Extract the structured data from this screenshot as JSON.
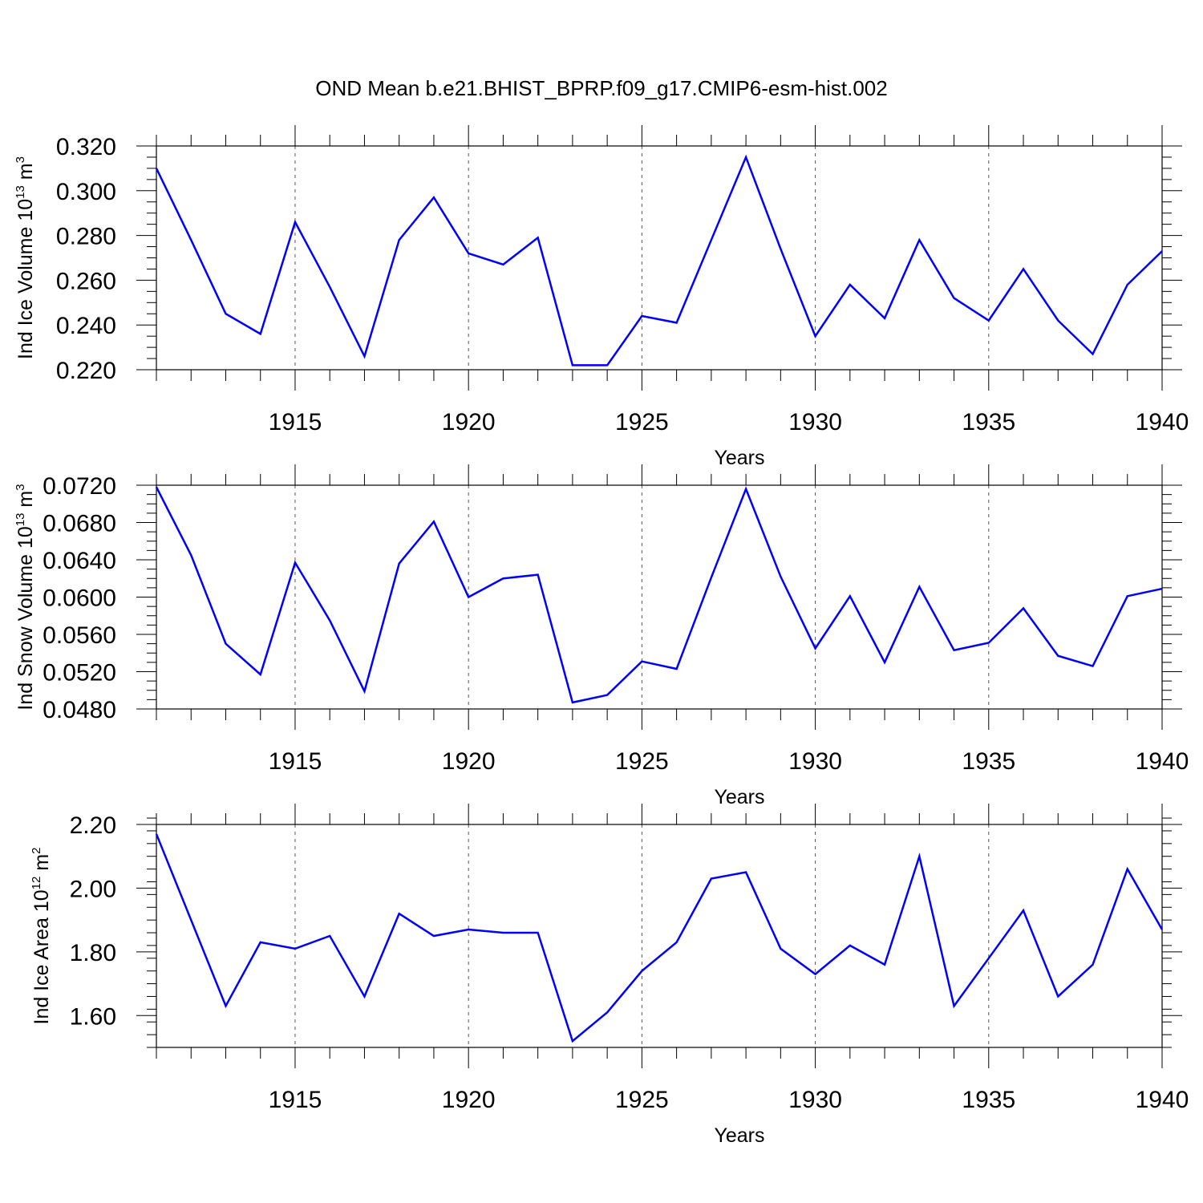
{
  "title": "OND Mean b.e21.BHIST_BPRP.f09_g17.CMIP6-esm-hist.002",
  "chart_data": [
    {
      "type": "line",
      "name": "ice-volume",
      "ylabel_main": "Ind Ice Volume 10",
      "ylabel_exp": "13",
      "ylabel_unit": " m",
      "ylabel_unit_exp": "3",
      "xlabel": "Years",
      "xlim": [
        1911,
        1940
      ],
      "ylim": [
        0.22,
        0.32
      ],
      "yticks": [
        0.22,
        0.24,
        0.26,
        0.28,
        0.3,
        0.32
      ],
      "ytick_labels": [
        "0.220",
        "0.240",
        "0.260",
        "0.280",
        "0.300",
        "0.320"
      ],
      "yminor_step": 0.005,
      "xticks": [
        1915,
        1920,
        1925,
        1930,
        1935,
        1940
      ],
      "xtick_labels": [
        "1915",
        "1920",
        "1925",
        "1930",
        "1935",
        "1940"
      ],
      "grid": "dashed vertical at major x ticks",
      "color": "#0000ff",
      "x": [
        1911,
        1912,
        1913,
        1914,
        1915,
        1916,
        1917,
        1918,
        1919,
        1920,
        1921,
        1922,
        1923,
        1924,
        1925,
        1926,
        1927,
        1928,
        1929,
        1930,
        1931,
        1932,
        1933,
        1934,
        1935,
        1936,
        1937,
        1938,
        1939,
        1940
      ],
      "values": [
        0.31,
        0.278,
        0.245,
        0.236,
        0.286,
        0.257,
        0.226,
        0.278,
        0.297,
        0.272,
        0.267,
        0.279,
        0.222,
        0.222,
        0.244,
        0.241,
        0.278,
        0.315,
        0.274,
        0.235,
        0.258,
        0.243,
        0.278,
        0.252,
        0.242,
        0.265,
        0.242,
        0.227,
        0.258,
        0.273
      ]
    },
    {
      "type": "line",
      "name": "snow-volume",
      "ylabel_main": "Ind Snow Volume 10",
      "ylabel_exp": "13",
      "ylabel_unit": " m",
      "ylabel_unit_exp": "3",
      "xlabel": "Years",
      "xlim": [
        1911,
        1940
      ],
      "ylim": [
        0.048,
        0.072
      ],
      "yticks": [
        0.048,
        0.052,
        0.056,
        0.06,
        0.064,
        0.068,
        0.072
      ],
      "ytick_labels": [
        "0.0480",
        "0.0520",
        "0.0560",
        "0.0600",
        "0.0640",
        "0.0680",
        "0.0720"
      ],
      "yminor_step": 0.001,
      "xticks": [
        1915,
        1920,
        1925,
        1930,
        1935,
        1940
      ],
      "xtick_labels": [
        "1915",
        "1920",
        "1925",
        "1930",
        "1935",
        "1940"
      ],
      "grid": "dashed vertical at major x ticks",
      "color": "#0000ff",
      "x": [
        1911,
        1912,
        1913,
        1914,
        1915,
        1916,
        1917,
        1918,
        1919,
        1920,
        1921,
        1922,
        1923,
        1924,
        1925,
        1926,
        1927,
        1928,
        1929,
        1930,
        1931,
        1932,
        1933,
        1934,
        1935,
        1936,
        1937,
        1938,
        1939,
        1940
      ],
      "values": [
        0.0718,
        0.0645,
        0.055,
        0.0517,
        0.0637,
        0.0575,
        0.0499,
        0.0636,
        0.0681,
        0.06,
        0.062,
        0.0624,
        0.0487,
        0.0495,
        0.0531,
        0.0523,
        0.0621,
        0.0716,
        0.0622,
        0.0545,
        0.0601,
        0.053,
        0.0611,
        0.0543,
        0.0551,
        0.0588,
        0.0537,
        0.0526,
        0.0601,
        0.0609
      ]
    },
    {
      "type": "line",
      "name": "ice-area",
      "ylabel_main": "Ind Ice Area 10",
      "ylabel_exp": "12",
      "ylabel_unit": " m",
      "ylabel_unit_exp": "2",
      "xlabel": "Years",
      "xlim": [
        1911,
        1940
      ],
      "ylim": [
        1.5,
        2.2
      ],
      "yticks": [
        1.6,
        1.8,
        2.0,
        2.2
      ],
      "ytick_labels": [
        "1.60",
        "1.80",
        "2.00",
        "2.20"
      ],
      "yminor_step": 0.04,
      "xticks": [
        1915,
        1920,
        1925,
        1930,
        1935,
        1940
      ],
      "xtick_labels": [
        "1915",
        "1920",
        "1925",
        "1930",
        "1935",
        "1940"
      ],
      "grid": "dashed vertical at major x ticks",
      "color": "#0000ff",
      "x": [
        1911,
        1912,
        1913,
        1914,
        1915,
        1916,
        1917,
        1918,
        1919,
        1920,
        1921,
        1922,
        1923,
        1924,
        1925,
        1926,
        1927,
        1928,
        1929,
        1930,
        1931,
        1932,
        1933,
        1934,
        1935,
        1936,
        1937,
        1938,
        1939,
        1940
      ],
      "values": [
        2.17,
        1.9,
        1.63,
        1.83,
        1.81,
        1.85,
        1.66,
        1.92,
        1.85,
        1.87,
        1.86,
        1.86,
        1.52,
        1.61,
        1.74,
        1.83,
        2.03,
        2.05,
        1.81,
        1.73,
        1.82,
        1.76,
        2.1,
        1.63,
        1.78,
        1.93,
        1.66,
        1.76,
        2.06,
        1.87
      ]
    }
  ]
}
